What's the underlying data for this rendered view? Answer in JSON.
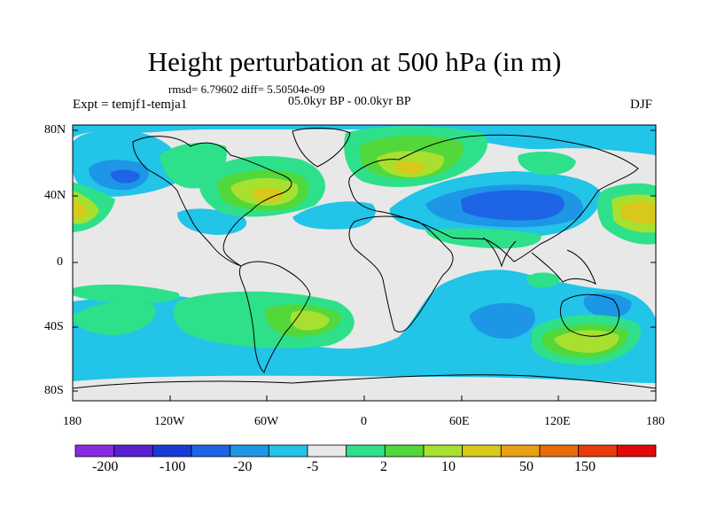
{
  "header": {
    "title": "Height perturbation at 500 hPa (in m)",
    "stats": "rmsd= 6.79602   diff= 5.50504e-09",
    "period": "05.0kyr BP - 00.0kyr BP",
    "experiment": "Expt = temjf1-temja1",
    "season": "DJF"
  },
  "axes": {
    "lat_labels": [
      "80N",
      "40N",
      "0",
      "40S",
      "80S"
    ],
    "lon_labels": [
      "180",
      "120W",
      "60W",
      "0",
      "60E",
      "120E",
      "180"
    ]
  },
  "colorbar": {
    "labels": [
      "-200",
      "-100",
      "-20",
      "-5",
      "2",
      "10",
      "50",
      "150"
    ],
    "colors": [
      "#8a2be2",
      "#5a1fd0",
      "#1a3ad6",
      "#1e64e6",
      "#1e96e6",
      "#22c4e8",
      "#e8e8e8",
      "#2ee08a",
      "#52d83a",
      "#a8e030",
      "#d8c81a",
      "#e8a012",
      "#e86a0a",
      "#e83a0a",
      "#e00a0a"
    ]
  },
  "palette": {
    "neutral": "#e8e8e8",
    "pos_light": "#2ee08a",
    "pos_mid": "#52d83a",
    "pos_yellowgreen": "#a8e030",
    "pos_yellow": "#d8c81a",
    "neg_light": "#22c4e8",
    "neg_mid": "#1e96e6",
    "neg_strong": "#1e64e6"
  }
}
